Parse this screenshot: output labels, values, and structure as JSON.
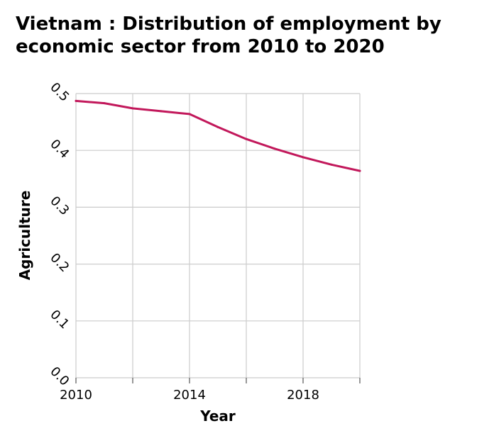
{
  "chart_data": {
    "type": "line",
    "title_line1": "Vietnam : Distribution of employment by",
    "title_line2": "economic sector from 2010 to 2020",
    "xlabel": "Year",
    "ylabel": "Agriculture",
    "xlim": [
      2010,
      2020
    ],
    "ylim": [
      0,
      0.5
    ],
    "x_ticks": [
      2010,
      2012,
      2014,
      2016,
      2018,
      2020
    ],
    "x_tick_labels": [
      "2010",
      "",
      "2014",
      "",
      "2018",
      ""
    ],
    "y_ticks": [
      0.0,
      0.1,
      0.2,
      0.3,
      0.4,
      0.5
    ],
    "y_tick_labels": [
      "0.0",
      "0.1",
      "0.2",
      "0.3",
      "0.4",
      "0.5"
    ],
    "grid": true,
    "series": [
      {
        "color": "#c2185b",
        "x": [
          2010,
          2011,
          2012,
          2013,
          2014,
          2015,
          2016,
          2017,
          2018,
          2019,
          2020
        ],
        "y": [
          0.487,
          0.483,
          0.474,
          0.469,
          0.464,
          0.441,
          0.42,
          0.403,
          0.388,
          0.375,
          0.364
        ]
      }
    ]
  }
}
